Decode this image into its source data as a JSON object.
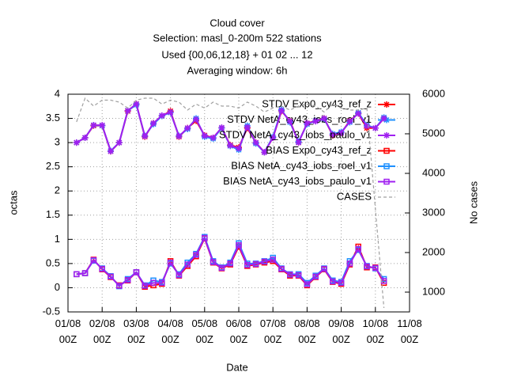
{
  "chart_data": {
    "type": "line",
    "title": "Cloud cover",
    "subtitle": [
      "Selection: masl_0-200m    522 stations",
      "Used {00,06,12,18} + 01 02 ... 12",
      "Averaging window:  6h"
    ],
    "xlabel": "Date",
    "ylabel": "octas",
    "y2label": "No cases",
    "grid": true,
    "legend": "upper right",
    "x": [
      6,
      12,
      18,
      24,
      30,
      36,
      42,
      48,
      54,
      60,
      66,
      72,
      78,
      84,
      90,
      96,
      102,
      108,
      114,
      120,
      126,
      132,
      138,
      144,
      150,
      156,
      162,
      168,
      174,
      180,
      186,
      192,
      198,
      204,
      210,
      216,
      222
    ],
    "xlim": [
      0,
      240
    ],
    "xticks": [
      {
        "value": 0,
        "label": "01/08\n00Z"
      },
      {
        "value": 24,
        "label": "02/08\n00Z"
      },
      {
        "value": 48,
        "label": "03/08\n00Z"
      },
      {
        "value": 72,
        "label": "04/08\n00Z"
      },
      {
        "value": 96,
        "label": "05/08\n00Z"
      },
      {
        "value": 120,
        "label": "06/08\n00Z"
      },
      {
        "value": 144,
        "label": "07/08\n00Z"
      },
      {
        "value": 168,
        "label": "08/08\n00Z"
      },
      {
        "value": 192,
        "label": "09/08\n00Z"
      },
      {
        "value": 216,
        "label": "10/08\n00Z"
      },
      {
        "value": 240,
        "label": "11/08\n00Z"
      }
    ],
    "ylim": [
      -0.5,
      4
    ],
    "yticks": [
      -0.5,
      0,
      0.5,
      1,
      1.5,
      2,
      2.5,
      3,
      3.5,
      4
    ],
    "y2lim": [
      500,
      6000
    ],
    "y2ticks": [
      1000,
      2000,
      3000,
      4000,
      5000,
      6000
    ],
    "series": [
      {
        "name": "STDV Exp0_cy43_ref_z",
        "color": "#ff0000",
        "marker": "star",
        "values": [
          3.0,
          3.1,
          3.35,
          3.35,
          2.82,
          3.0,
          3.65,
          3.8,
          3.12,
          3.4,
          3.55,
          3.65,
          3.12,
          3.3,
          3.45,
          3.15,
          3.1,
          3.3,
          2.95,
          2.9,
          3.3,
          3.0,
          2.8,
          3.1,
          3.65,
          3.45,
          3.0,
          3.4,
          3.45,
          3.5,
          3.15,
          3.2,
          3.45,
          3.6,
          3.3,
          3.3,
          3.5
        ]
      },
      {
        "name": "STDV NetA_cy43_iobs_roel_v1",
        "color": "#1e90ff",
        "marker": "star",
        "values": [
          3.0,
          3.1,
          3.36,
          3.35,
          2.83,
          3.0,
          3.66,
          3.78,
          3.14,
          3.38,
          3.55,
          3.62,
          3.14,
          3.28,
          3.5,
          3.12,
          3.08,
          3.3,
          2.93,
          2.85,
          3.35,
          2.98,
          2.8,
          3.12,
          3.68,
          3.42,
          3.02,
          3.38,
          3.45,
          3.48,
          3.18,
          3.22,
          3.42,
          3.62,
          3.36,
          3.3,
          3.52
        ]
      },
      {
        "name": "STDV NetA_cy43_iobs_paulo_v1",
        "color": "#a020f0",
        "marker": "star",
        "values": [
          3.0,
          3.1,
          3.36,
          3.36,
          2.82,
          3.0,
          3.66,
          3.8,
          3.13,
          3.4,
          3.56,
          3.63,
          3.13,
          3.3,
          3.48,
          3.14,
          3.1,
          3.31,
          2.94,
          2.88,
          3.32,
          3.0,
          2.8,
          3.1,
          3.66,
          3.44,
          3.0,
          3.4,
          3.44,
          3.5,
          3.16,
          3.2,
          3.44,
          3.6,
          3.34,
          3.3,
          3.5
        ]
      },
      {
        "name": "BIAS Exp0_cy43_ref_z",
        "color": "#ff0000",
        "marker": "square",
        "values": [
          0.28,
          0.3,
          0.58,
          0.38,
          0.22,
          0.05,
          0.15,
          0.32,
          0.02,
          0.05,
          0.08,
          0.55,
          0.25,
          0.45,
          0.65,
          1.02,
          0.52,
          0.4,
          0.48,
          0.85,
          0.45,
          0.48,
          0.52,
          0.55,
          0.38,
          0.25,
          0.25,
          0.05,
          0.22,
          0.38,
          0.12,
          0.08,
          0.48,
          0.85,
          0.42,
          0.42,
          0.1
        ]
      },
      {
        "name": "BIAS NetA_cy43_iobs_roel_v1",
        "color": "#1e90ff",
        "marker": "square",
        "values": [
          0.28,
          0.3,
          0.56,
          0.4,
          0.24,
          0.03,
          0.18,
          0.32,
          0.05,
          0.15,
          0.12,
          0.5,
          0.28,
          0.52,
          0.7,
          1.05,
          0.55,
          0.42,
          0.52,
          0.92,
          0.5,
          0.5,
          0.55,
          0.62,
          0.4,
          0.28,
          0.28,
          0.1,
          0.25,
          0.4,
          0.15,
          0.12,
          0.55,
          0.78,
          0.45,
          0.4,
          0.18
        ]
      },
      {
        "name": "BIAS NetA_cy43_iobs_paulo_v1",
        "color": "#a020f0",
        "marker": "square",
        "values": [
          0.28,
          0.3,
          0.57,
          0.39,
          0.23,
          0.04,
          0.16,
          0.32,
          0.04,
          0.1,
          0.1,
          0.52,
          0.26,
          0.48,
          0.68,
          1.03,
          0.53,
          0.41,
          0.5,
          0.88,
          0.47,
          0.49,
          0.54,
          0.58,
          0.39,
          0.27,
          0.26,
          0.07,
          0.23,
          0.39,
          0.13,
          0.1,
          0.5,
          0.8,
          0.44,
          0.41,
          0.14
        ]
      },
      {
        "name": "CASES",
        "color": "#a0a0a0",
        "axis": "y2",
        "dash": true,
        "values": [
          5300,
          5900,
          5700,
          5850,
          5850,
          5800,
          5650,
          5850,
          5900,
          5900,
          5750,
          5850,
          5800,
          5600,
          5750,
          5650,
          5800,
          5700,
          5700,
          5650,
          5800,
          5700,
          5550,
          5650,
          5700,
          5600,
          5700,
          5750,
          5700,
          5550,
          5750,
          5650,
          5600,
          5600,
          5650,
          3100,
          600
        ]
      }
    ]
  }
}
